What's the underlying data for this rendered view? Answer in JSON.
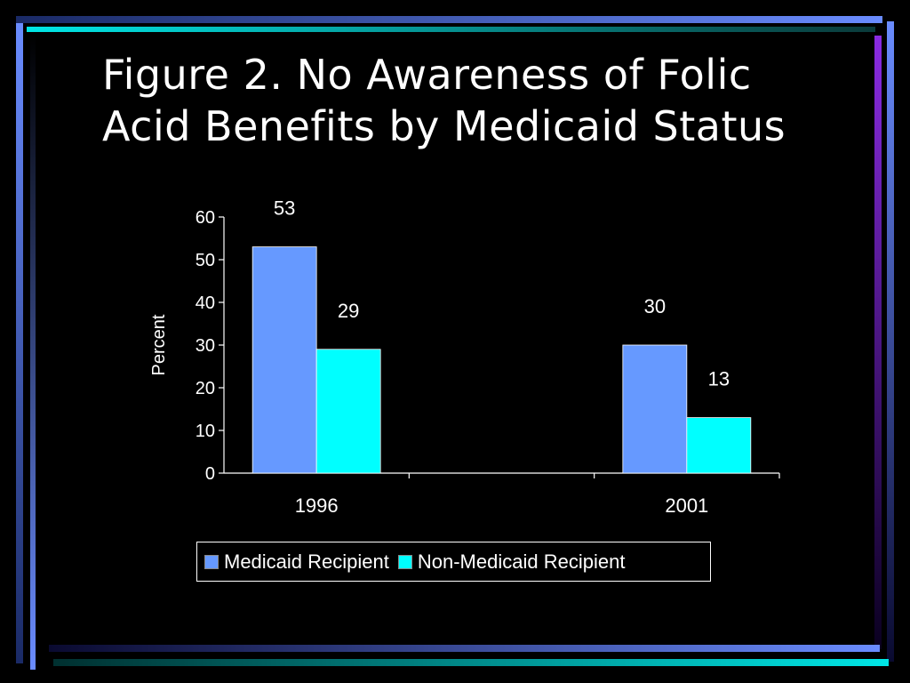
{
  "slide": {
    "title_line1": "Figure 2. No Awareness of Folic",
    "title_line2": "Acid Benefits by Medicaid Status"
  },
  "colors": {
    "background": "#000000",
    "medicaid": "#6699ff",
    "non_medicaid": "#00ffff",
    "frame_blue": "#6a8cff",
    "frame_cyan": "#00e6e6",
    "frame_purple": "#8a2be2"
  },
  "chart_data": {
    "type": "bar",
    "title": "",
    "xlabel": "",
    "ylabel": "Percent",
    "categories": [
      "1996",
      "2001"
    ],
    "series": [
      {
        "name": "Medicaid Recipient",
        "values": [
          53,
          30
        ],
        "color": "#6699ff"
      },
      {
        "name": "Non-Medicaid Recipient",
        "values": [
          29,
          13
        ],
        "color": "#00ffff"
      }
    ],
    "ylim": [
      0,
      60
    ],
    "yticks": [
      0,
      10,
      20,
      30,
      40,
      50,
      60
    ],
    "data_labels": true,
    "grid": false,
    "legend": "bottom"
  }
}
